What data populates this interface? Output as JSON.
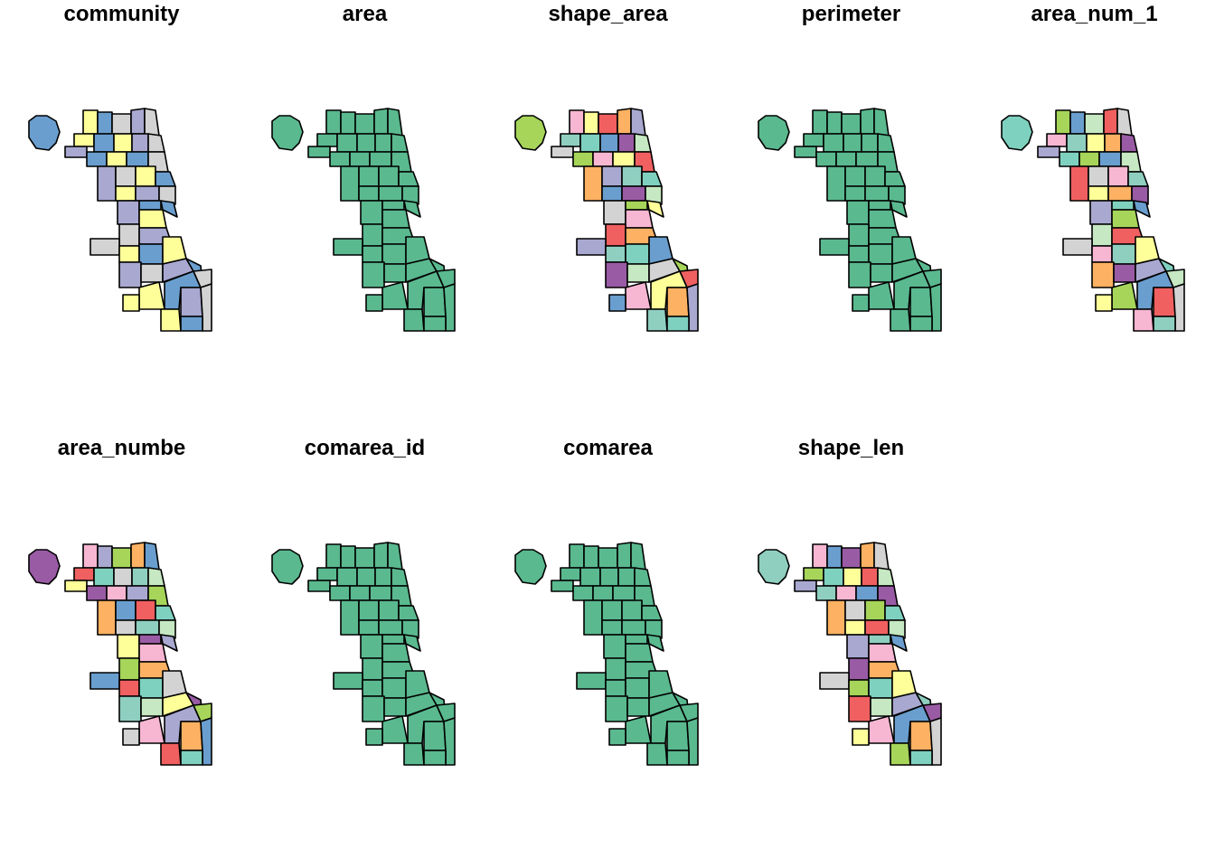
{
  "panels": [
    {
      "title": "community",
      "fill": "categorical"
    },
    {
      "title": "area",
      "fill": "uniform"
    },
    {
      "title": "shape_area",
      "fill": "categorical"
    },
    {
      "title": "perimeter",
      "fill": "uniform"
    },
    {
      "title": "area_num_1",
      "fill": "categorical"
    },
    {
      "title": "area_numbe",
      "fill": "categorical"
    },
    {
      "title": "comarea_id",
      "fill": "uniform"
    },
    {
      "title": "comarea",
      "fill": "uniform"
    },
    {
      "title": "shape_len",
      "fill": "categorical"
    }
  ],
  "colors": {
    "uniform": "#5ab98f",
    "palette": [
      "#f06060",
      "#ffff99",
      "#c6e8c2",
      "#8fcfc0",
      "#a8a8d0",
      "#f7b6d2",
      "#9a5ba5",
      "#6a9ecf",
      "#fdb162",
      "#a6d55a",
      "#d3d3d3",
      "#7fd1bf"
    ],
    "stroke": "#000000",
    "background": "#ffffff"
  }
}
